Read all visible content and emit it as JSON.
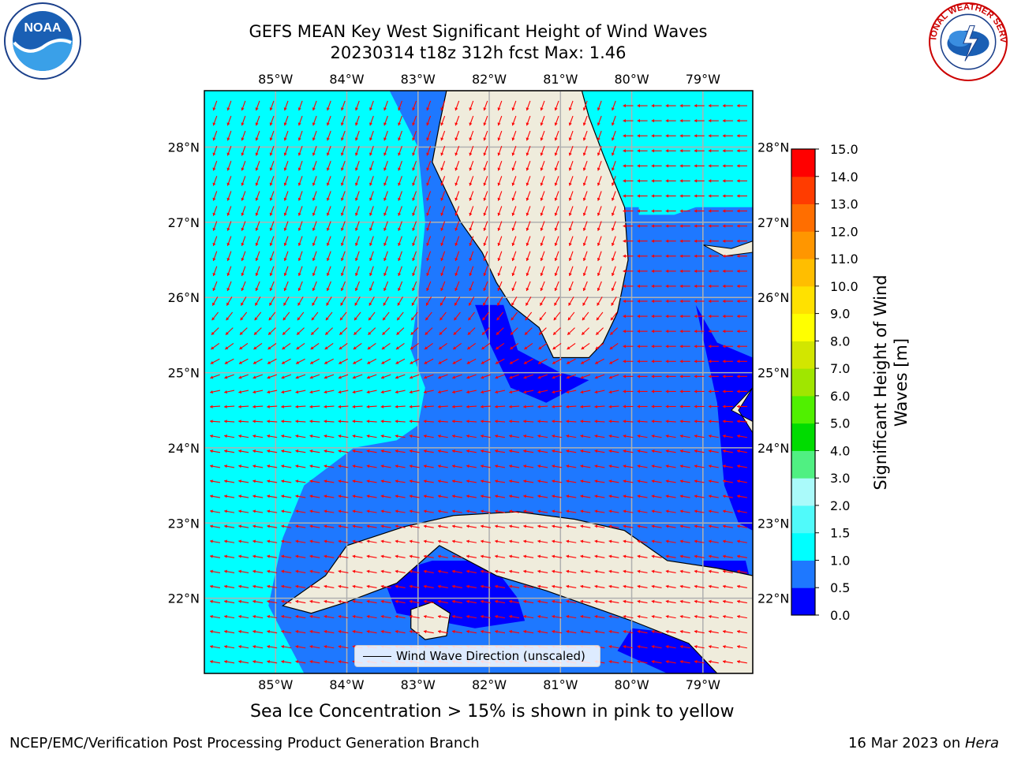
{
  "title": {
    "line1": "GEFS MEAN Key West Significant Height of Wind Waves",
    "line2": "20230314 t18z 312h fcst   Max: 1.46"
  },
  "logos": {
    "left": "NOAA",
    "right": "NATIONAL WEATHER SERVICE",
    "left_icon": "noaa-logo",
    "right_icon": "nws-logo"
  },
  "map": {
    "lon_labels": [
      "85°W",
      "84°W",
      "83°W",
      "82°W",
      "81°W",
      "80°W",
      "79°W"
    ],
    "lon_values": [
      -85,
      -84,
      -83,
      -82,
      -81,
      -80,
      -79
    ],
    "lat_labels": [
      "28°N",
      "27°N",
      "26°N",
      "25°N",
      "24°N",
      "23°N",
      "22°N"
    ],
    "lat_values": [
      28,
      27,
      26,
      25,
      24,
      23,
      22
    ],
    "extent": {
      "lon_min": -86.0,
      "lon_max": -78.3,
      "lat_min": 21.0,
      "lat_max": 28.75
    },
    "arrow_color": "#ff0000",
    "land_color": "#efecdc",
    "grid_color": "#b0b0b0",
    "legend_label": "Wind Wave Direction (unscaled)"
  },
  "colorbar": {
    "label": "Significant Height of Wind Waves [m]",
    "ticks": [
      "0.0",
      "0.5",
      "1.0",
      "1.5",
      "2.0",
      "3.0",
      "4.0",
      "5.0",
      "6.0",
      "7.0",
      "8.0",
      "9.0",
      "10.0",
      "11.0",
      "12.0",
      "13.0",
      "14.0",
      "15.0"
    ],
    "colors": [
      "#0000ff",
      "#1e78ff",
      "#00ffff",
      "#50fafa",
      "#aafafa",
      "#50f082",
      "#00dc00",
      "#50f000",
      "#a0e600",
      "#d2e600",
      "#ffff00",
      "#ffe100",
      "#ffbe00",
      "#ff9600",
      "#ff6e00",
      "#ff3c00",
      "#ff0000"
    ]
  },
  "sea_ice_note": "Sea Ice Concentration > 15% is shown in pink to yellow",
  "footer": {
    "left": "NCEP/EMC/Verification Post Processing Product Generation Branch",
    "date": "16 Mar 2023 on ",
    "host": "Hera"
  }
}
